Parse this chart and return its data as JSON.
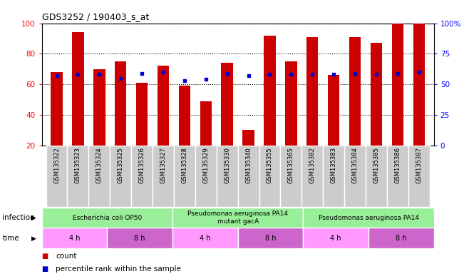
{
  "title": "GDS3252 / 190403_s_at",
  "samples": [
    "GSM135322",
    "GSM135323",
    "GSM135324",
    "GSM135325",
    "GSM135326",
    "GSM135327",
    "GSM135328",
    "GSM135329",
    "GSM135330",
    "GSM135340",
    "GSM135355",
    "GSM135365",
    "GSM135382",
    "GSM135383",
    "GSM135384",
    "GSM135385",
    "GSM135386",
    "GSM135387"
  ],
  "counts": [
    68,
    94,
    70,
    75,
    61,
    72,
    59,
    49,
    74,
    30,
    92,
    75,
    91,
    66,
    91,
    87,
    100,
    100
  ],
  "percentiles": [
    57,
    58,
    58,
    55,
    59,
    60,
    53,
    54,
    59,
    57,
    58,
    58,
    58,
    58,
    59,
    58,
    59,
    60
  ],
  "ylim_left": [
    20,
    100
  ],
  "ylim_right": [
    0,
    100
  ],
  "yticks_left": [
    20,
    40,
    60,
    80,
    100
  ],
  "yticks_right": [
    0,
    25,
    50,
    75,
    100
  ],
  "ytick_right_labels": [
    "0",
    "25",
    "50",
    "75",
    "100%"
  ],
  "bar_color": "#cc0000",
  "dot_color": "#0000cc",
  "grid_color": "#000000",
  "bg_color": "#ffffff",
  "infection_groups": [
    {
      "label": "Escherichia coli OP50",
      "start": 0,
      "end": 6,
      "color": "#99ee99"
    },
    {
      "label": "Pseudomonas aeruginosa PA14\nmutant gacA",
      "start": 6,
      "end": 12,
      "color": "#99ee99"
    },
    {
      "label": "Pseudomonas aeruginosa PA14",
      "start": 12,
      "end": 18,
      "color": "#99ee99"
    }
  ],
  "time_groups": [
    {
      "label": "4 h",
      "start": 0,
      "end": 3,
      "color": "#ff99ff"
    },
    {
      "label": "8 h",
      "start": 3,
      "end": 6,
      "color": "#cc66cc"
    },
    {
      "label": "4 h",
      "start": 6,
      "end": 9,
      "color": "#ff99ff"
    },
    {
      "label": "8 h",
      "start": 9,
      "end": 12,
      "color": "#cc66cc"
    },
    {
      "label": "4 h",
      "start": 12,
      "end": 15,
      "color": "#ff99ff"
    },
    {
      "label": "8 h",
      "start": 15,
      "end": 18,
      "color": "#cc66cc"
    }
  ],
  "legend_count_label": "count",
  "legend_percentile_label": "percentile rank within the sample",
  "xlabel_infection": "infection",
  "xlabel_time": "time",
  "sample_bg_color": "#cccccc",
  "sample_edge_color": "#ffffff"
}
